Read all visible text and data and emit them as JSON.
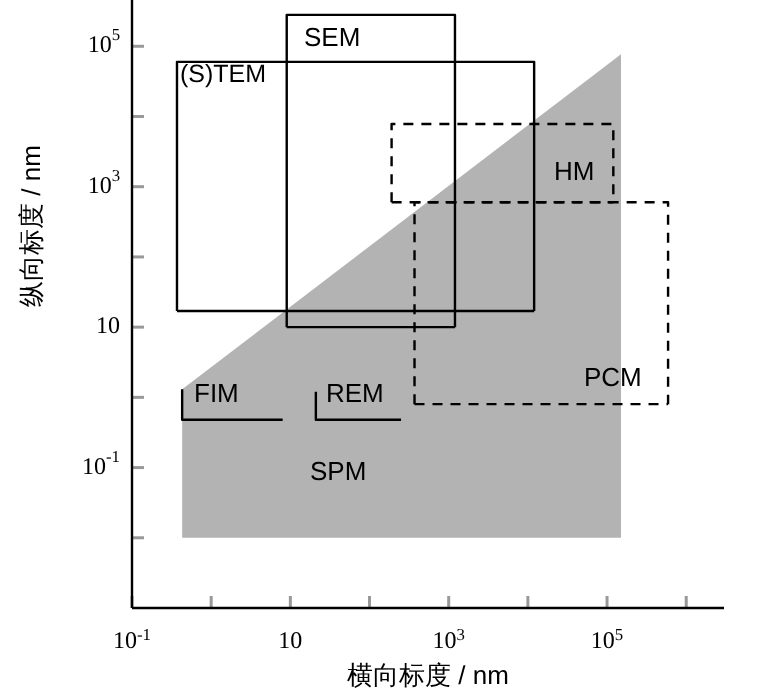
{
  "chart_data": {
    "type": "line",
    "xlabel": "横向标度 / nm",
    "ylabel": "纵向标度 / nm",
    "log": "xy",
    "xlim": [
      0.1,
      3000000
    ],
    "ylim": [
      0.001,
      400000
    ],
    "xticks": [
      {
        "value": 0.1,
        "label": "10$^{-1}$"
      },
      {
        "value": 1,
        "label": null
      },
      10,
      {
        "value": 100,
        "label": null
      },
      {
        "value": 1000,
        "label": "10$^{3}$"
      },
      {
        "value": 10000,
        "label": null
      },
      {
        "value": 100000,
        "label": "10$^{5}$"
      },
      {
        "value": 1000000,
        "label": null
      }
    ],
    "yticks": [
      {
        "value": 0.01,
        "label": null
      },
      {
        "value": 0.1,
        "label": "10$^{-1}$"
      },
      {
        "value": 1,
        "label": null
      },
      10,
      {
        "value": 100,
        "label": null
      },
      {
        "value": 1000,
        "label": "10$^{3}$"
      },
      {
        "value": 10000,
        "label": null
      },
      {
        "value": 100000,
        "label": "10$^{5}$"
      }
    ],
    "series": [
      {
        "type": "area",
        "color": "#b3b3b3",
        "x": [
          0.43,
          0.43,
          150000,
          150000
        ],
        "values": [
          0.01,
          1.3,
          77000,
          0.01
        ]
      },
      {
        "color": "#000000",
        "line_style": "solid",
        "x": [
          0.37,
          0.37,
          12000,
          12000
        ],
        "values": [
          17,
          60000,
          60000,
          17
        ]
      },
      {
        "color": "#000000",
        "line_style": "solid",
        "x": [
          0.37,
          12000
        ],
        "values": [
          17,
          17
        ]
      },
      {
        "color": "#000000",
        "line_style": "solid",
        "x": [
          9,
          9,
          1200,
          1200
        ],
        "values": [
          10,
          280000,
          280000,
          10
        ]
      },
      {
        "color": "#000000",
        "line_style": "solid",
        "x": [
          9,
          1200
        ],
        "values": [
          10,
          10
        ]
      },
      {
        "color": "#000000",
        "line_style": "dashed",
        "x": [
          190,
          190,
          120000,
          120000
        ],
        "values": [
          600,
          7800,
          7800,
          600
        ]
      },
      {
        "color": "#000000",
        "line_style": "dashed",
        "x": [
          190,
          120000
        ],
        "values": [
          600,
          600
        ]
      },
      {
        "color": "#000000",
        "line_style": "dashed",
        "x": [
          370,
          370,
          590000,
          590000
        ],
        "values": [
          0.8,
          600,
          600,
          0.8
        ]
      },
      {
        "color": "#000000",
        "line_style": "dashed",
        "x": [
          370,
          590000
        ],
        "values": [
          0.8,
          0.8
        ]
      },
      {
        "color": "#000000",
        "line_style": "solid",
        "x": [
          0.43,
          0.43,
          8
        ],
        "values": [
          1.3,
          0.48,
          0.48
        ]
      },
      {
        "color": "#000000",
        "line_style": "solid",
        "x": [
          21,
          21,
          250
        ],
        "values": [
          1.2,
          0.48,
          0.48
        ]
      }
    ],
    "annotations": [
      "(S)TEM",
      "SEM",
      "HM",
      "PCM",
      "FIM",
      "REM",
      "SPM"
    ]
  }
}
